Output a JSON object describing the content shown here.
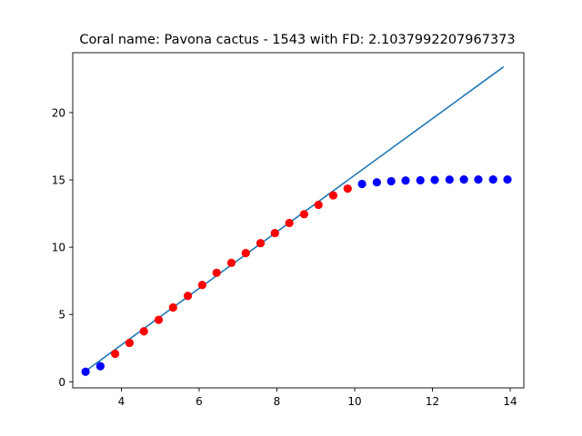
{
  "chart_data": {
    "type": "scatter",
    "title": "Coral name: Pavona cactus - 1543 with FD: 2.1037992207967373",
    "xlabel": "",
    "ylabel": "",
    "xlim": [
      2.75,
      14.35
    ],
    "ylim": [
      -0.45,
      24.45
    ],
    "grid": false,
    "x_ticks": [
      4,
      6,
      8,
      10,
      12,
      14
    ],
    "y_ticks": [
      0,
      5,
      10,
      15,
      20
    ],
    "colors": {
      "fit_line": "#1f77b4",
      "fit_points": "#ff0000",
      "other_points": "#0000ff"
    },
    "series": [
      {
        "kind": "points",
        "color": "#0000ff",
        "x": [
          3.08,
          3.46
        ],
        "y": [
          0.75,
          1.16
        ]
      },
      {
        "kind": "points",
        "color": "#ff0000",
        "x": [
          3.84,
          4.21,
          4.58,
          4.96,
          5.33,
          5.71,
          6.08,
          6.45,
          6.83,
          7.2,
          7.58,
          7.95,
          8.32,
          8.7,
          9.07,
          9.45,
          9.82
        ],
        "y": [
          2.08,
          2.89,
          3.75,
          4.6,
          5.52,
          6.38,
          7.19,
          8.1,
          8.84,
          9.56,
          10.3,
          11.05,
          11.8,
          12.45,
          13.15,
          13.85,
          14.35
        ]
      },
      {
        "kind": "points",
        "color": "#0000ff",
        "x": [
          10.19,
          10.57,
          10.94,
          11.31,
          11.69,
          12.06,
          12.44,
          12.81,
          13.18,
          13.56,
          13.93
        ],
        "y": [
          14.7,
          14.82,
          14.9,
          14.95,
          14.97,
          15.0,
          15.02,
          15.03,
          15.03,
          15.03,
          15.03
        ]
      },
      {
        "kind": "line",
        "color": "#1f77b4",
        "x": [
          3.08,
          13.83
        ],
        "y": [
          0.8,
          23.4
        ]
      }
    ]
  }
}
